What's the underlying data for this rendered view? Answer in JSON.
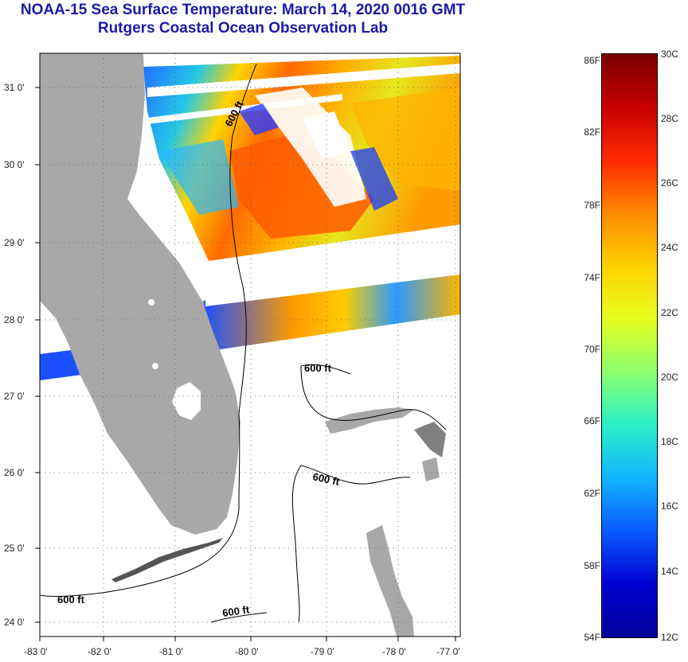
{
  "header": {
    "title_line1": "NOAA-15 Sea Surface Temperature:  March 14, 2020 0016 GMT",
    "title_line2": "Rutgers Coastal Ocean Observation Lab"
  },
  "axes": {
    "lat_labels": [
      "31 0'",
      "30 0'",
      "29 0'",
      "28 0'",
      "27 0'",
      "26 0'",
      "25 0'",
      "24 0'"
    ],
    "lon_labels": [
      "-83 0'",
      "-82 0'",
      "-81 0'",
      "-80 0'",
      "-79 0'",
      "-78 0'",
      "-77 0'"
    ]
  },
  "isobath_label": "600 ft",
  "colorbar": {
    "fahrenheit": [
      "86F",
      "82F",
      "78F",
      "74F",
      "70F",
      "66F",
      "62F",
      "58F",
      "54F"
    ],
    "celsius": [
      "30C",
      "28C",
      "26C",
      "24C",
      "22C",
      "20C",
      "18C",
      "16C",
      "14C",
      "12C"
    ],
    "min_c": 12,
    "max_c": 30,
    "stops": [
      "#7a0000",
      "#c80000",
      "#ff2a00",
      "#ff8a00",
      "#ffd200",
      "#e6ff1e",
      "#8cff6e",
      "#2af0c8",
      "#12b4ff",
      "#0a5aff",
      "#0000d2",
      "#00009a"
    ]
  },
  "colors": {
    "land": "#a8a8a8",
    "title": "#1a1aa6",
    "warm": "#ff6a00",
    "mid": "#ffcc00",
    "cool": "#2aa8ff",
    "cold": "#0a2aff"
  }
}
